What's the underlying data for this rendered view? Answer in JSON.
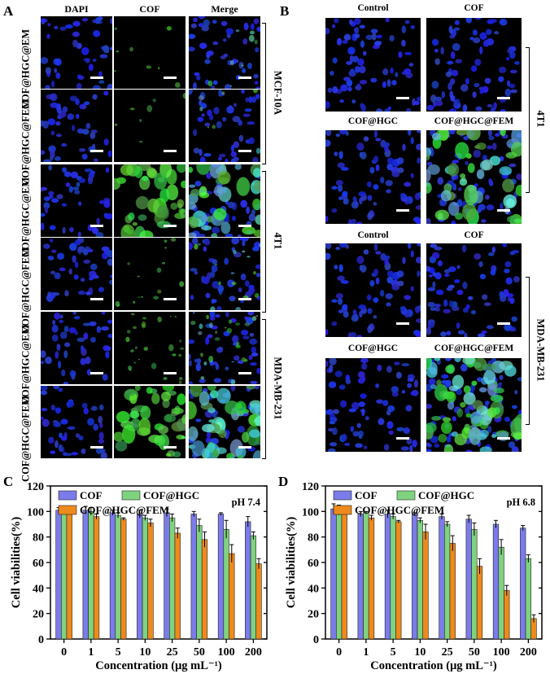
{
  "panelA": {
    "label": "A",
    "columns": [
      "DAPI",
      "COF",
      "Merge"
    ],
    "row_labels": [
      "COF@HGC@EM",
      "COF@HGC@FEM",
      "COF@HGC@EM",
      "COF@HGC@FEM"
    ],
    "cell_lines": [
      "MCF-10A",
      "4T1",
      "MDA-MB-231"
    ]
  },
  "panelB": {
    "label": "B",
    "top": {
      "headers": [
        "Control",
        "COF"
      ],
      "headers2": [
        "COF@HGC",
        "COF@HGC@FEM"
      ],
      "cell_line": "4T1"
    },
    "bottom": {
      "headers": [
        "Control",
        "COF"
      ],
      "headers2": [
        "COF@HGC",
        "COF@HGC@FEM"
      ],
      "cell_line": "MDA-MB-231"
    }
  },
  "colors": {
    "COF": "#7b7bea",
    "COF@HGC": "#7fd37f",
    "COF@HGC@FEM": "#ee8a1c"
  },
  "chart_data": [
    {
      "panel": "C",
      "type": "bar",
      "annotation": "pH 7.4",
      "xlabel": "Concentration (μg mL⁻¹)",
      "ylabel": "Cell viabilities(%)",
      "ylim": [
        0,
        120
      ],
      "yticks": [
        0,
        20,
        40,
        60,
        80,
        100,
        120
      ],
      "categories": [
        "0",
        "1",
        "5",
        "10",
        "25",
        "50",
        "100",
        "200"
      ],
      "legend": "top-left",
      "series": [
        {
          "name": "COF",
          "values": [
            101,
            101,
            99,
            98,
            99,
            98,
            98,
            92
          ],
          "errors": [
            2,
            3,
            2,
            3,
            3,
            2,
            1,
            4
          ]
        },
        {
          "name": "COF@HGC",
          "values": [
            100,
            100,
            97,
            95,
            95,
            89,
            86,
            81
          ],
          "errors": [
            2,
            3,
            2,
            2,
            3,
            5,
            7,
            3
          ]
        },
        {
          "name": "COF@HGC@FEM",
          "values": [
            100,
            96,
            94,
            91,
            83,
            78,
            67,
            59
          ],
          "errors": [
            2,
            2,
            1,
            3,
            4,
            6,
            7,
            4
          ]
        }
      ]
    },
    {
      "panel": "D",
      "type": "bar",
      "annotation": "pH 6.8",
      "xlabel": "Concentration (μg mL⁻¹)",
      "ylabel": "Cell viabilities(%)",
      "ylim": [
        0,
        120
      ],
      "yticks": [
        0,
        20,
        40,
        60,
        80,
        100,
        120
      ],
      "categories": [
        "0",
        "1",
        "5",
        "10",
        "25",
        "50",
        "100",
        "200"
      ],
      "legend": "top-left",
      "series": [
        {
          "name": "COF",
          "values": [
            102,
            98,
            98,
            98,
            96,
            94,
            90,
            87
          ],
          "errors": [
            4,
            2,
            3,
            1,
            2,
            3,
            3,
            2
          ]
        },
        {
          "name": "COF@HGC",
          "values": [
            101,
            99,
            96,
            93,
            90,
            86,
            72,
            63
          ],
          "errors": [
            4,
            1,
            2,
            2,
            2,
            5,
            6,
            3
          ]
        },
        {
          "name": "COF@HGC@FEM",
          "values": [
            101,
            95,
            92,
            84,
            75,
            57,
            38,
            16
          ],
          "errors": [
            3,
            2,
            1,
            6,
            6,
            6,
            4,
            3
          ]
        }
      ]
    }
  ]
}
